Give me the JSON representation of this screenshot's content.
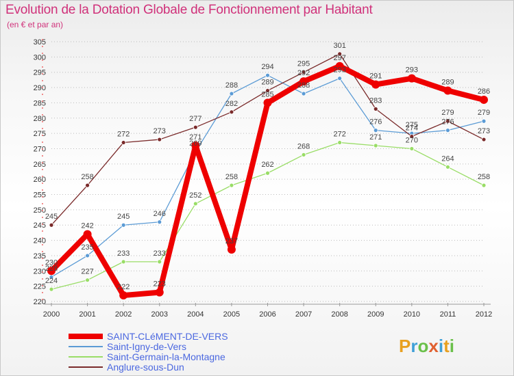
{
  "header": {
    "title": "Evolution de la Dotation Globale de Fonctionnement par Habitant",
    "subtitle": "(en € et par an)"
  },
  "brand": {
    "logo_text": "Proxiti"
  },
  "chart_data": {
    "type": "line",
    "title": "Evolution de la Dotation Globale de Fonctionnement par Habitant",
    "subtitle": "(en € et par an)",
    "xlabel": "",
    "ylabel": "",
    "x": [
      "2000",
      "2001",
      "2002",
      "2003",
      "2004",
      "2005",
      "2006",
      "2007",
      "2008",
      "2009",
      "2010",
      "2011",
      "2012"
    ],
    "ylim": [
      220,
      305
    ],
    "yticks": [
      220,
      225,
      230,
      235,
      240,
      245,
      250,
      255,
      260,
      265,
      270,
      275,
      280,
      285,
      290,
      295,
      300,
      305
    ],
    "grid": "horizontal dashed",
    "legend_position": "bottom-left",
    "series": [
      {
        "name": "Saint-Igny-de-Vers",
        "color": "#5b9bd5",
        "values": [
          228,
          235,
          245,
          246,
          269,
          288,
          294,
          288,
          293,
          276,
          275,
          276,
          279
        ]
      },
      {
        "name": "Saint-Germain-la-Montagne",
        "color": "#99dd66",
        "values": [
          224,
          227,
          233,
          233,
          252,
          258,
          262,
          268,
          272,
          271,
          270,
          264,
          258
        ]
      },
      {
        "name": "Anglure-sous-Dun",
        "color": "#7a2a2a",
        "values": [
          245,
          258,
          272,
          273,
          277,
          282,
          289,
          295,
          301,
          283,
          274,
          279,
          273
        ]
      },
      {
        "name": "SAINT-CLéMENT-DE-VERS",
        "color": "#ee0000",
        "values": [
          230,
          242,
          222,
          223,
          271,
          237,
          285,
          292,
          297,
          291,
          293,
          289,
          286
        ]
      }
    ]
  }
}
